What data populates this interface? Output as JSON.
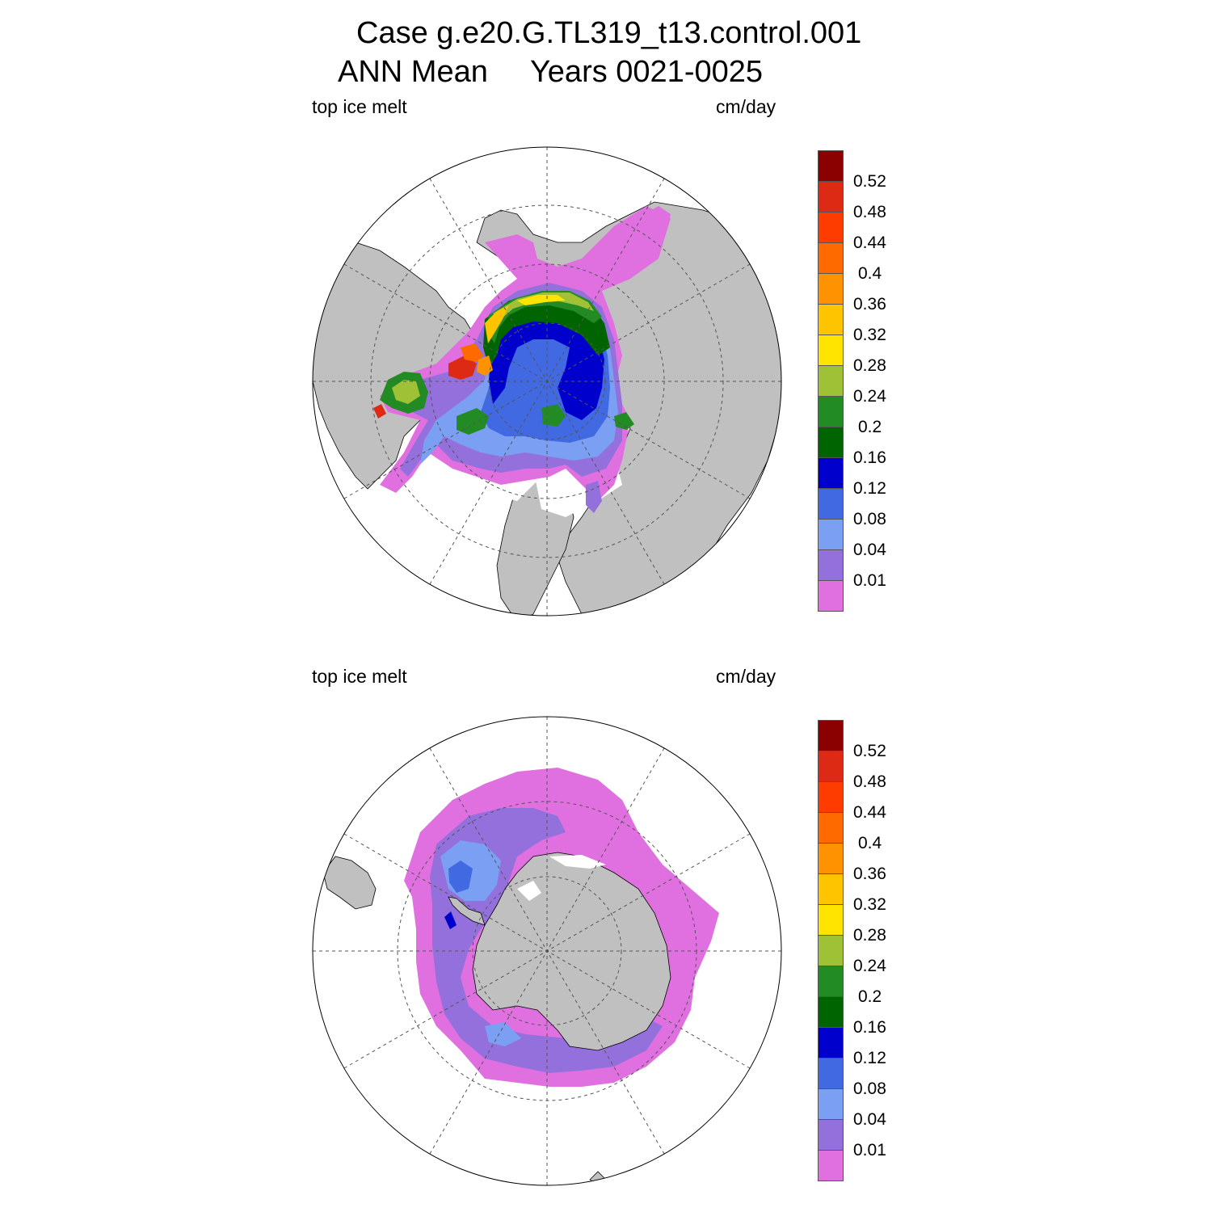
{
  "title": {
    "line1": "Case g.e20.G.TL319_t13.control.001",
    "line2": "ANN Mean     Years 0021-0025"
  },
  "panels": [
    {
      "variable": "top ice melt",
      "units": "cm/day",
      "hemisphere": "north"
    },
    {
      "variable": "top ice melt",
      "units": "cm/day",
      "hemisphere": "south"
    }
  ],
  "colorbar": {
    "labels": [
      "0.52",
      "0.48",
      "0.44",
      "0.4",
      "0.36",
      "0.32",
      "0.28",
      "0.24",
      "0.2",
      "0.16",
      "0.12",
      "0.08",
      "0.04",
      "0.01"
    ],
    "colors": [
      "#8b0000",
      "#dc2a14",
      "#ff3c00",
      "#ff6a00",
      "#ff9200",
      "#ffc400",
      "#ffe400",
      "#9fc136",
      "#238b23",
      "#006400",
      "#0000cd",
      "#4169e1",
      "#7b9ff2",
      "#9370db",
      "#e070e0"
    ]
  },
  "colors": {
    "land": "#c0c0c0",
    "ocean": "#ffffff",
    "grid": "#555555"
  }
}
